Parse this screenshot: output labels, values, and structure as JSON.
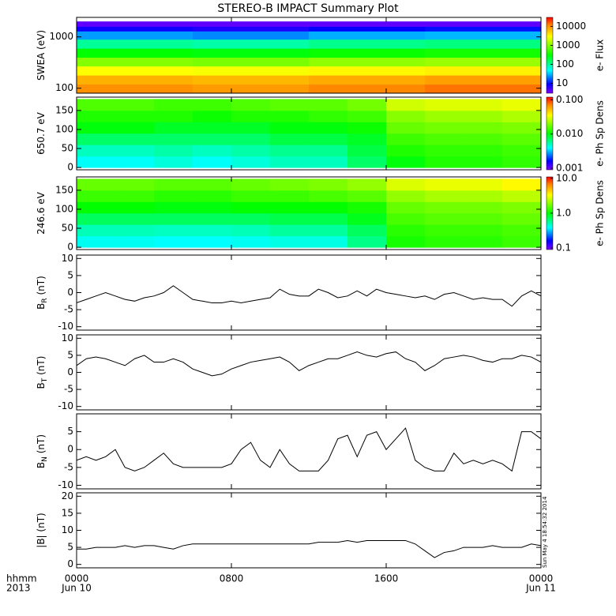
{
  "chart_data": [
    {
      "type": "heatmap",
      "title": "STEREO-B IMPACT Summary Plot",
      "ylabel": "SWEA (eV)",
      "ylog": true,
      "xlim": [
        0,
        24
      ],
      "ylim": [
        80,
        2400
      ],
      "yticks": [
        100,
        1000
      ],
      "x_edges": [
        0,
        6,
        12,
        18,
        24
      ],
      "y_edges": [
        80,
        120,
        180,
        270,
        400,
        600,
        900,
        1300,
        1600,
        2000
      ],
      "z": [
        [
          10000,
          9000,
          11000,
          13000
        ],
        [
          7000,
          6500,
          7500,
          8500
        ],
        [
          3000,
          2800,
          3200,
          3500
        ],
        [
          1000,
          900,
          1100,
          1200
        ],
        [
          300,
          280,
          320,
          350
        ],
        [
          100,
          90,
          110,
          120
        ],
        [
          25,
          22,
          28,
          30
        ],
        [
          8,
          7,
          9,
          10
        ],
        [
          4,
          4,
          4,
          4
        ]
      ],
      "clog": true,
      "clim": [
        3,
        30000
      ],
      "cticks": [
        10,
        100,
        1000,
        10000
      ],
      "colorbar_label": "e- Flux"
    },
    {
      "type": "heatmap",
      "ylabel": "650.7 eV",
      "ylog": false,
      "xlim": [
        0,
        24
      ],
      "ylim": [
        -6,
        185
      ],
      "yticks": [
        0,
        50,
        100,
        150
      ],
      "x_edges": [
        0,
        2,
        4,
        6,
        8,
        10,
        12,
        14,
        16,
        18,
        20,
        22,
        24
      ],
      "y_edges": [
        0,
        30,
        60,
        90,
        120,
        150,
        180
      ],
      "z": [
        [
          0.004,
          0.004,
          0.0045,
          0.004,
          0.0045,
          0.005,
          0.005,
          0.007,
          0.01,
          0.012,
          0.012,
          0.013
        ],
        [
          0.005,
          0.005,
          0.0055,
          0.005,
          0.0055,
          0.006,
          0.006,
          0.008,
          0.012,
          0.013,
          0.013,
          0.014
        ],
        [
          0.007,
          0.007,
          0.007,
          0.007,
          0.007,
          0.008,
          0.008,
          0.009,
          0.014,
          0.015,
          0.015,
          0.016
        ],
        [
          0.01,
          0.01,
          0.009,
          0.009,
          0.009,
          0.01,
          0.01,
          0.011,
          0.017,
          0.018,
          0.018,
          0.019
        ],
        [
          0.012,
          0.012,
          0.012,
          0.011,
          0.012,
          0.012,
          0.013,
          0.014,
          0.02,
          0.022,
          0.022,
          0.024
        ],
        [
          0.015,
          0.015,
          0.014,
          0.014,
          0.015,
          0.016,
          0.016,
          0.018,
          0.028,
          0.03,
          0.03,
          0.032
        ]
      ],
      "clog": true,
      "clim": [
        0.0009,
        0.12
      ],
      "cticks": [
        0.001,
        {
          "value": 0.01,
          "label": "0.010"
        },
        {
          "value": 0.1,
          "label": "0.100"
        }
      ],
      "colorbar_label": "e- Ph Sp Dens"
    },
    {
      "type": "heatmap",
      "ylabel": "246.6 eV",
      "ylog": false,
      "xlim": [
        0,
        24
      ],
      "ylim": [
        -6,
        185
      ],
      "yticks": [
        0,
        50,
        100,
        150
      ],
      "x_edges": [
        0,
        2,
        4,
        6,
        8,
        10,
        12,
        14,
        16,
        18,
        20,
        22,
        24
      ],
      "y_edges": [
        0,
        30,
        60,
        90,
        120,
        150,
        180
      ],
      "z": [
        [
          0.4,
          0.4,
          0.38,
          0.38,
          0.4,
          0.42,
          0.42,
          0.6,
          1.1,
          1.2,
          1.2,
          1.3
        ],
        [
          0.5,
          0.5,
          0.48,
          0.48,
          0.5,
          0.55,
          0.55,
          0.7,
          1.2,
          1.3,
          1.3,
          1.4
        ],
        [
          0.7,
          0.7,
          0.7,
          0.7,
          0.7,
          0.75,
          0.75,
          0.9,
          1.4,
          1.5,
          1.5,
          1.6
        ],
        [
          1.0,
          1.0,
          0.95,
          0.95,
          1.0,
          1.0,
          1.0,
          1.1,
          1.6,
          1.7,
          1.7,
          1.8
        ],
        [
          1.3,
          1.3,
          1.2,
          1.2,
          1.3,
          1.3,
          1.4,
          1.5,
          2.0,
          2.2,
          2.2,
          2.4
        ],
        [
          1.6,
          1.6,
          1.5,
          1.5,
          1.6,
          1.7,
          1.8,
          2.0,
          2.8,
          3.0,
          3.0,
          3.4
        ]
      ],
      "clog": true,
      "clim": [
        0.09,
        11
      ],
      "cticks": [
        0.1,
        {
          "value": 1,
          "label": "1.0"
        },
        {
          "value": 10,
          "label": "10.0"
        }
      ],
      "colorbar_label": "e- Ph Sp Dens"
    },
    {
      "type": "line",
      "ylabel": "B",
      "ylabel_sub": "R",
      "ylabel_unit": "(nT)",
      "xlim": [
        0,
        24
      ],
      "ylim": [
        -11,
        11
      ],
      "yticks": [
        -10,
        -5,
        0,
        5,
        10
      ],
      "x": [
        0,
        0.5,
        1,
        1.5,
        2,
        2.5,
        3,
        3.5,
        4,
        4.5,
        5,
        5.5,
        6,
        6.5,
        7,
        7.5,
        8,
        8.5,
        9,
        9.5,
        10,
        10.5,
        11,
        11.5,
        12,
        12.5,
        13,
        13.5,
        14,
        14.5,
        15,
        15.5,
        16,
        16.5,
        17,
        17.5,
        18,
        18.5,
        19,
        19.5,
        20,
        20.5,
        21,
        21.5,
        22,
        22.5,
        23,
        23.5,
        24
      ],
      "series": [
        {
          "color": "#000000",
          "values": [
            -3,
            -2,
            -1,
            0,
            -1,
            -2,
            -2.5,
            -1.5,
            -1,
            0,
            2,
            0,
            -2,
            -2.5,
            -3,
            -3,
            -2.5,
            -3,
            -2.5,
            -2,
            -1.5,
            1,
            -0.5,
            -1,
            -1,
            1,
            0,
            -1.5,
            -1,
            0.5,
            -1,
            1,
            0,
            -0.5,
            -1,
            -1.5,
            -1,
            -2,
            -0.5,
            0,
            -1,
            -2,
            -1.5,
            -2,
            -2,
            -4,
            -1,
            0.5,
            -1
          ]
        }
      ]
    },
    {
      "type": "line",
      "ylabel": "B",
      "ylabel_sub": "T",
      "ylabel_unit": "(nT)",
      "xlim": [
        0,
        24
      ],
      "ylim": [
        -11,
        11
      ],
      "yticks": [
        -10,
        -5,
        0,
        5,
        10
      ],
      "x": [
        0,
        0.5,
        1,
        1.5,
        2,
        2.5,
        3,
        3.5,
        4,
        4.5,
        5,
        5.5,
        6,
        6.5,
        7,
        7.5,
        8,
        8.5,
        9,
        9.5,
        10,
        10.5,
        11,
        11.5,
        12,
        12.5,
        13,
        13.5,
        14,
        14.5,
        15,
        15.5,
        16,
        16.5,
        17,
        17.5,
        18,
        18.5,
        19,
        19.5,
        20,
        20.5,
        21,
        21.5,
        22,
        22.5,
        23,
        23.5,
        24
      ],
      "series": [
        {
          "color": "#000000",
          "values": [
            2,
            4,
            4.5,
            4,
            3,
            2,
            4,
            5,
            3,
            3,
            4,
            3,
            1,
            0,
            -1,
            -0.5,
            1,
            2,
            3,
            3.5,
            4,
            4.5,
            3,
            0.5,
            2,
            3,
            4,
            4,
            5,
            6,
            5,
            4.5,
            5.5,
            6,
            4,
            3,
            0.5,
            2,
            4,
            4.5,
            5,
            4.5,
            3.5,
            3,
            4,
            4,
            5,
            4.5,
            3
          ]
        }
      ]
    },
    {
      "type": "line",
      "ylabel": "B",
      "ylabel_sub": "N",
      "ylabel_unit": "(nT)",
      "xlim": [
        0,
        24
      ],
      "ylim": [
        -11,
        10
      ],
      "yticks": [
        -10,
        -5,
        0,
        5
      ],
      "x": [
        0,
        0.5,
        1,
        1.5,
        2,
        2.5,
        3,
        3.5,
        4,
        4.5,
        5,
        5.5,
        6,
        6.5,
        7,
        7.5,
        8,
        8.5,
        9,
        9.5,
        10,
        10.5,
        11,
        11.5,
        12,
        12.5,
        13,
        13.5,
        14,
        14.5,
        15,
        15.5,
        16,
        16.5,
        17,
        17.5,
        18,
        18.5,
        19,
        19.5,
        20,
        20.5,
        21,
        21.5,
        22,
        22.5,
        23,
        23.5,
        24
      ],
      "series": [
        {
          "color": "#000000",
          "values": [
            -3,
            -2,
            -3,
            -2,
            0,
            -5,
            -6,
            -5,
            -3,
            -1,
            -4,
            -5,
            -5,
            -5,
            -5,
            -5,
            -4,
            0,
            2,
            -3,
            -5,
            0,
            -4,
            -6,
            -6,
            -6,
            -3,
            3,
            4,
            -2,
            4,
            5,
            0,
            3,
            6,
            -3,
            -5,
            -6,
            -6,
            -1,
            -4,
            -3,
            -4,
            -3,
            -4,
            -6,
            5,
            5,
            3
          ]
        }
      ]
    },
    {
      "type": "line",
      "ylabel": "|B| (nT)",
      "xlim": [
        0,
        24
      ],
      "ylim": [
        -1,
        21
      ],
      "yticks": [
        0,
        5,
        10,
        15,
        20
      ],
      "x": [
        0,
        0.5,
        1,
        1.5,
        2,
        2.5,
        3,
        3.5,
        4,
        4.5,
        5,
        5.5,
        6,
        6.5,
        7,
        7.5,
        8,
        8.5,
        9,
        9.5,
        10,
        10.5,
        11,
        11.5,
        12,
        12.5,
        13,
        13.5,
        14,
        14.5,
        15,
        15.5,
        16,
        16.5,
        17,
        17.5,
        18,
        18.5,
        19,
        19.5,
        20,
        20.5,
        21,
        21.5,
        22,
        22.5,
        23,
        23.5,
        24
      ],
      "series": [
        {
          "color": "#000000",
          "values": [
            4.5,
            4.5,
            5,
            5,
            5,
            5.5,
            5,
            5.5,
            5.5,
            5,
            4.5,
            5.5,
            6,
            6,
            6,
            6,
            6,
            6,
            6,
            6,
            6,
            6,
            6,
            6,
            6,
            6.5,
            6.5,
            6.5,
            7,
            6.5,
            7,
            7,
            7,
            7,
            7,
            6,
            4,
            2,
            3.5,
            4,
            5,
            5,
            5,
            5.5,
            5,
            5,
            5,
            6,
            5.5
          ]
        }
      ],
      "xticks": [
        {
          "value": 0,
          "label": "0000",
          "date": "Jun 10"
        },
        {
          "value": 8,
          "label": "0800"
        },
        {
          "value": 16,
          "label": "1600"
        },
        {
          "value": 24,
          "label": "0000",
          "date": "Jun 11"
        }
      ],
      "xlabel": "hhmm",
      "year": "2013",
      "annotation": "Sun May  4 18:54:32 2014"
    }
  ]
}
